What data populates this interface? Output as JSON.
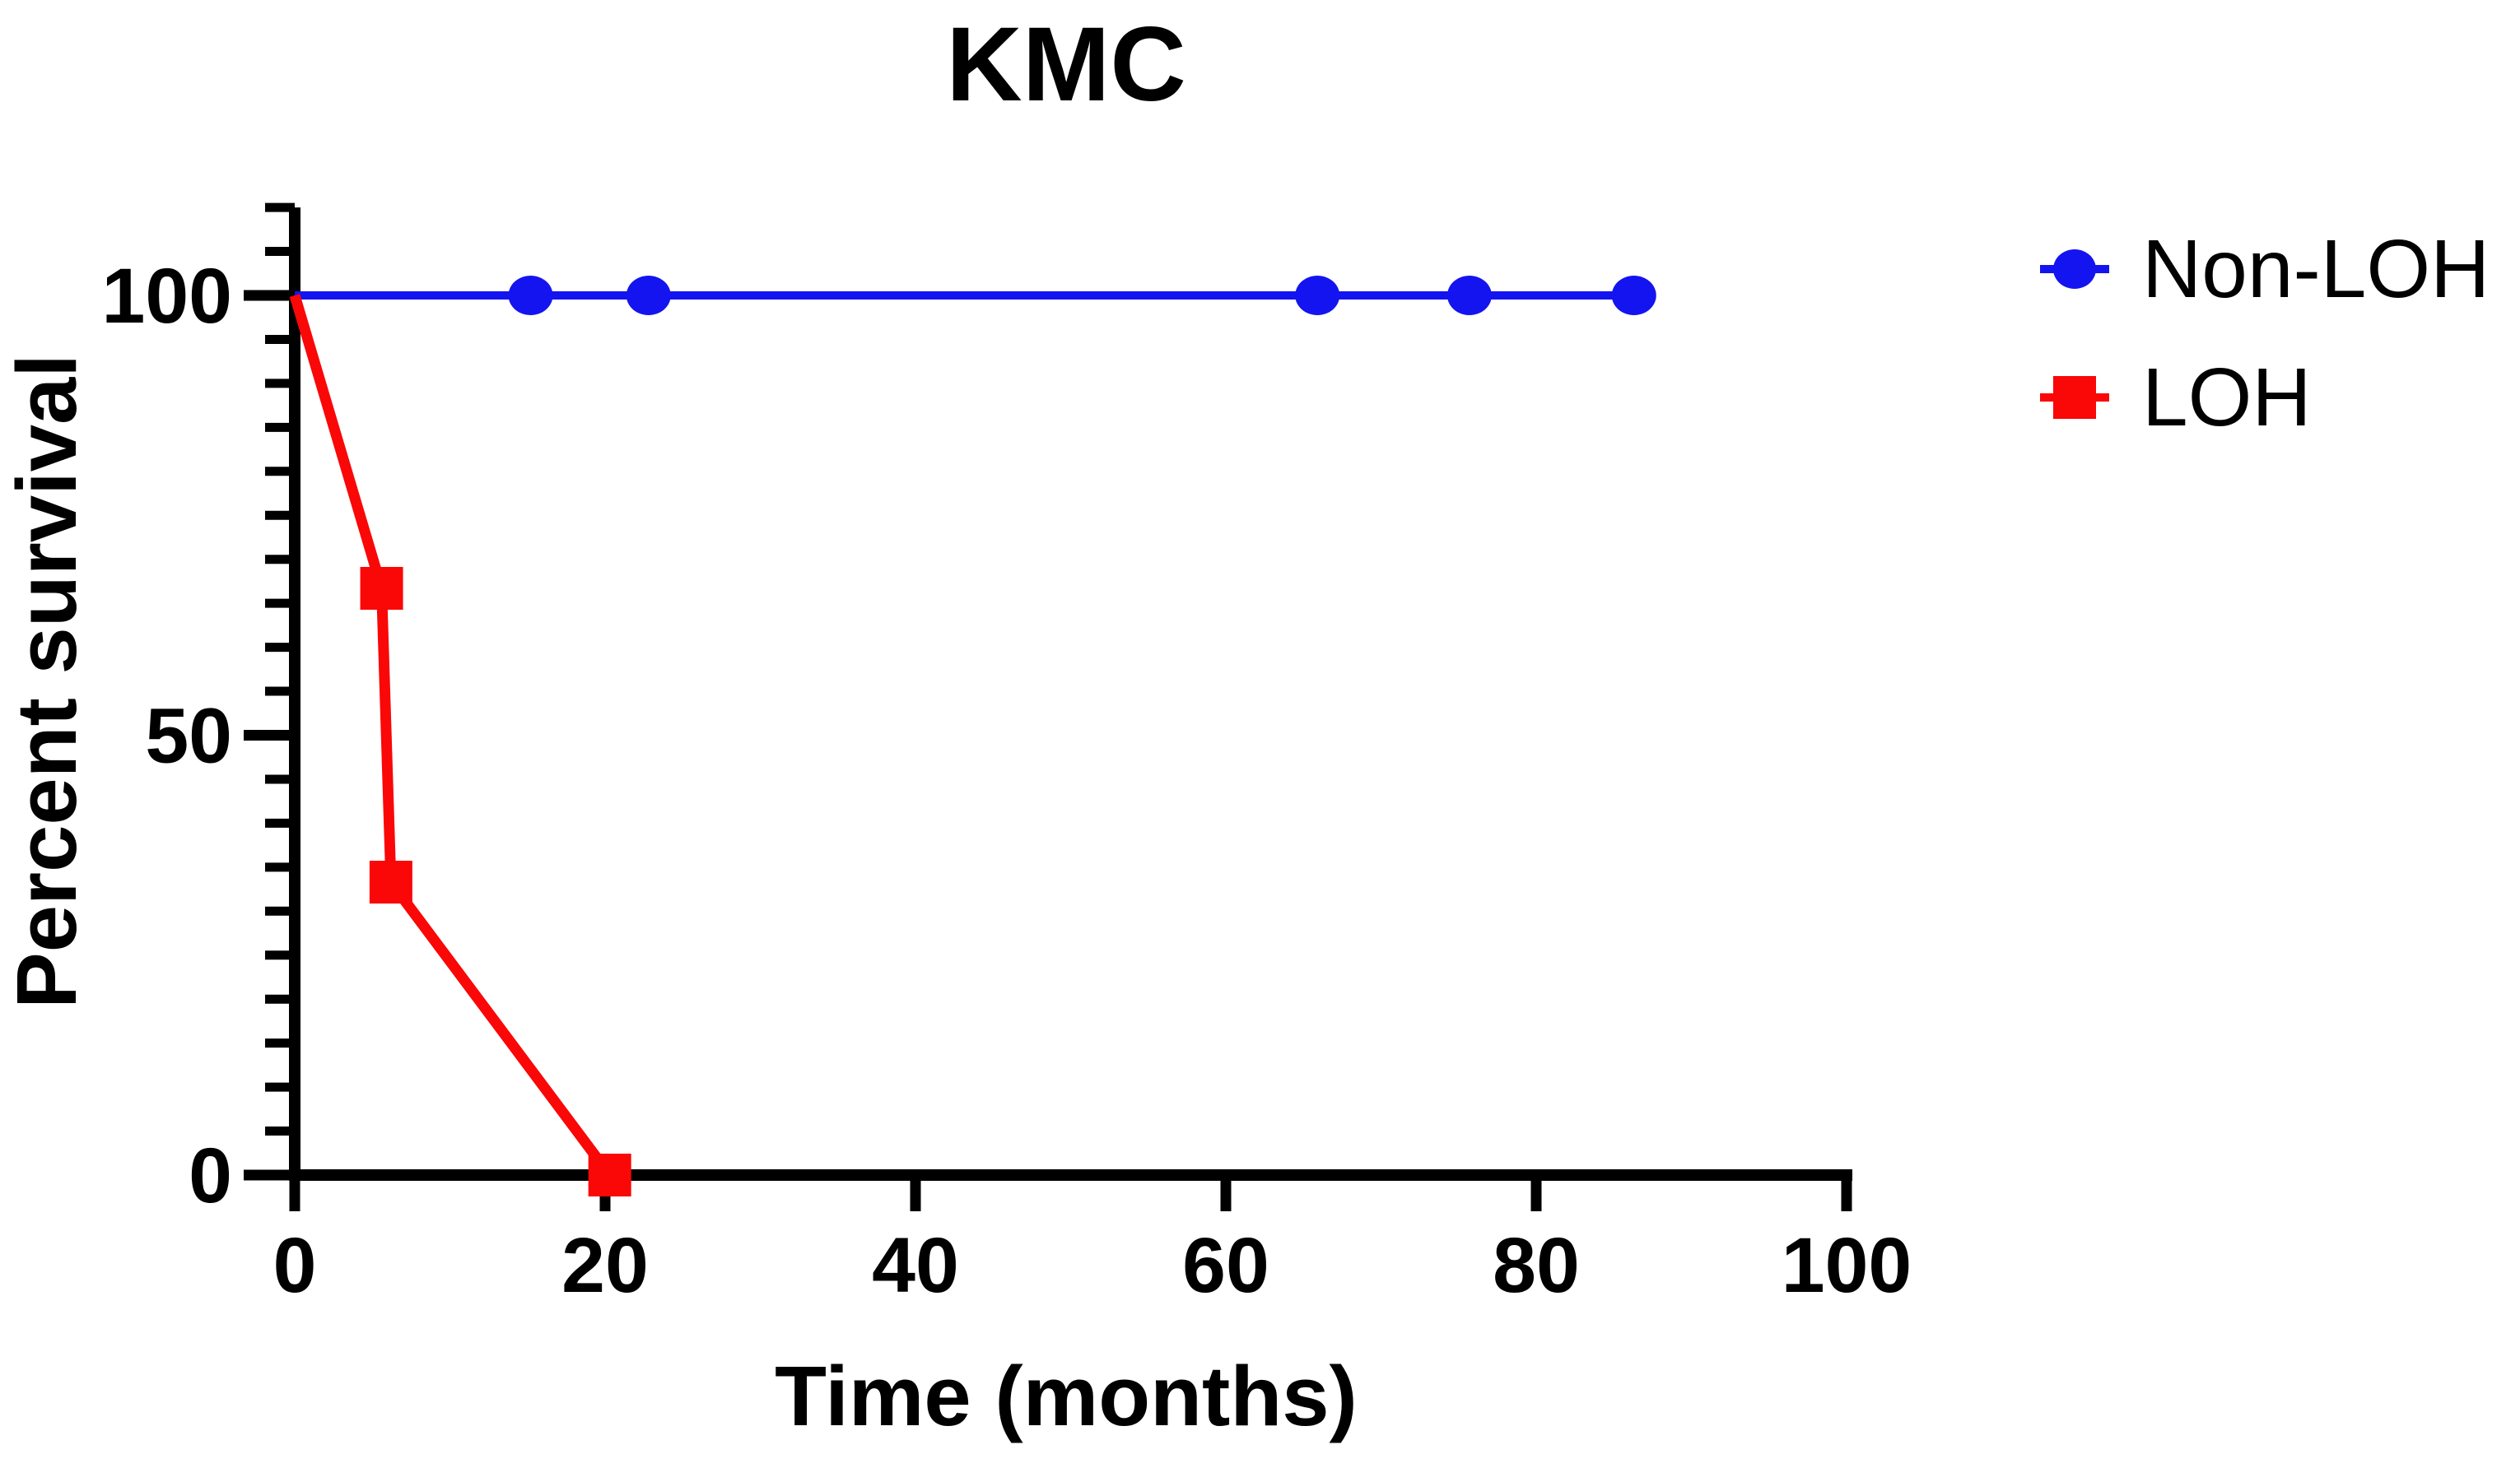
{
  "figure": {
    "title": "KMC",
    "background": "#ffffff"
  },
  "chart_data": {
    "type": "line",
    "subtype": "kaplan-meier-survival",
    "title": "KMC",
    "xlabel": "Time (months)",
    "ylabel": "Percent survival",
    "xlim": [
      0,
      100
    ],
    "ylim": [
      0,
      110
    ],
    "xticks": [
      0,
      20,
      40,
      60,
      80,
      100
    ],
    "yticks": [
      0,
      50,
      100
    ],
    "ytick_minor_step": 5,
    "grid": false,
    "legend_position": "right",
    "axis_color": "#000000",
    "series": [
      {
        "name": "Non-LOH",
        "color": "#1414f0",
        "marker": "circle",
        "line_points": [
          [
            0,
            100
          ],
          [
            87.7,
            100
          ]
        ],
        "marker_points": [
          [
            15.2,
            100
          ],
          [
            22.8,
            100
          ],
          [
            65.9,
            100
          ],
          [
            75.7,
            100
          ],
          [
            86.3,
            100
          ]
        ]
      },
      {
        "name": "LOH",
        "color": "#fa0707",
        "marker": "square",
        "line_points": [
          [
            0,
            100
          ],
          [
            5.6,
            66.7
          ],
          [
            6.2,
            33.3
          ],
          [
            20.3,
            0
          ]
        ],
        "marker_points": [
          [
            5.6,
            66.7
          ],
          [
            6.2,
            33.3
          ],
          [
            20.3,
            0
          ]
        ]
      }
    ]
  }
}
